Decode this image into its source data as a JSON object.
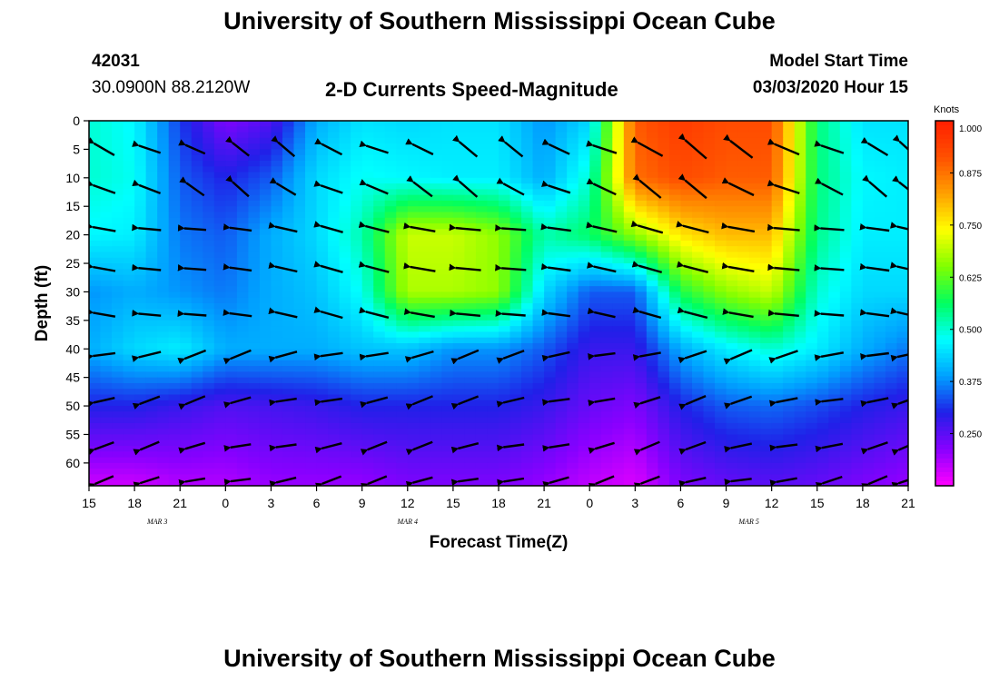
{
  "header": {
    "title_top": "University of Southern Mississippi Ocean Cube",
    "title_bottom": "University of Southern Mississippi Ocean Cube",
    "station_id": "42031",
    "station_coords": "30.0900N 88.2120W",
    "plot_title": "2-D Currents Speed-Magnitude",
    "model_start_label": "Model Start Time",
    "model_start_value": "03/03/2020 Hour 15"
  },
  "chart_data": {
    "type": "heatmap",
    "title": "2-D Currents Speed-Magnitude",
    "xlabel": "Forecast Time(Z)",
    "ylabel": "Depth (ft)",
    "x_tick_labels": [
      "15",
      "18",
      "21",
      "0",
      "3",
      "6",
      "9",
      "12",
      "15",
      "18",
      "21",
      "0",
      "3",
      "6",
      "9",
      "12",
      "15",
      "18",
      "21"
    ],
    "x_date_labels": [
      {
        "label": "MAR 3",
        "hour_index": 4.5
      },
      {
        "label": "MAR 4",
        "hour_index": 21
      },
      {
        "label": "MAR 5",
        "hour_index": 43.5
      }
    ],
    "x_range_hours": [
      0,
      54
    ],
    "y_ticks": [
      0,
      5,
      10,
      15,
      20,
      25,
      30,
      35,
      40,
      45,
      50,
      55,
      60
    ],
    "ylim": [
      0,
      64
    ],
    "y_inverted": true,
    "colorbar": {
      "label": "Knots",
      "range": [
        0.125,
        1.0
      ],
      "ticks": [
        "1.000",
        "0.875",
        "0.750",
        "0.625",
        "0.500",
        "0.375",
        "0.250"
      ],
      "colormap": [
        "#ff00ff",
        "#8800ff",
        "#2020e8",
        "#00a0ff",
        "#00ffff",
        "#00ff60",
        "#80ff00",
        "#ffff00",
        "#ffa000",
        "#ff5000",
        "#ff1e00"
      ]
    },
    "speed_rows_depth_ft": [
      0,
      10,
      20,
      30,
      40,
      50,
      64
    ],
    "speed_cols_hour": [
      0,
      3,
      6,
      9,
      12,
      15,
      18,
      21,
      24,
      27,
      30,
      33,
      36,
      39,
      42,
      45,
      48,
      51,
      54
    ],
    "speed_knots": [
      [
        0.5,
        0.47,
        0.32,
        0.22,
        0.26,
        0.4,
        0.45,
        0.44,
        0.45,
        0.45,
        0.38,
        0.44,
        0.9,
        0.95,
        0.92,
        0.92,
        0.55,
        0.45,
        0.45
      ],
      [
        0.5,
        0.48,
        0.34,
        0.3,
        0.34,
        0.44,
        0.48,
        0.47,
        0.46,
        0.46,
        0.4,
        0.5,
        0.88,
        0.92,
        0.9,
        0.9,
        0.55,
        0.47,
        0.46
      ],
      [
        0.47,
        0.46,
        0.36,
        0.34,
        0.4,
        0.44,
        0.52,
        0.7,
        0.7,
        0.66,
        0.52,
        0.56,
        0.66,
        0.76,
        0.8,
        0.8,
        0.54,
        0.46,
        0.46
      ],
      [
        0.38,
        0.4,
        0.38,
        0.36,
        0.4,
        0.42,
        0.48,
        0.68,
        0.68,
        0.66,
        0.44,
        0.34,
        0.34,
        0.58,
        0.66,
        0.7,
        0.5,
        0.44,
        0.44
      ],
      [
        0.4,
        0.44,
        0.46,
        0.4,
        0.4,
        0.4,
        0.42,
        0.42,
        0.38,
        0.38,
        0.34,
        0.28,
        0.28,
        0.4,
        0.46,
        0.5,
        0.46,
        0.4,
        0.36
      ],
      [
        0.3,
        0.3,
        0.28,
        0.26,
        0.27,
        0.28,
        0.3,
        0.3,
        0.3,
        0.3,
        0.28,
        0.24,
        0.22,
        0.3,
        0.34,
        0.35,
        0.33,
        0.3,
        0.28
      ],
      [
        0.16,
        0.16,
        0.18,
        0.18,
        0.2,
        0.2,
        0.2,
        0.22,
        0.22,
        0.22,
        0.2,
        0.17,
        0.15,
        0.22,
        0.24,
        0.25,
        0.24,
        0.22,
        0.2
      ]
    ],
    "vector_arrows": {
      "cols_hour": [
        1,
        4,
        7,
        10,
        13,
        16,
        19,
        22,
        25,
        28,
        31,
        34,
        37,
        40,
        43,
        46,
        49,
        52,
        54
      ],
      "depths_ft": [
        5,
        12,
        19,
        26,
        34,
        41,
        49,
        57,
        63
      ],
      "direction": "mostly westward (pointing left), northwest near surface",
      "length_scales_with_speed": true
    }
  }
}
